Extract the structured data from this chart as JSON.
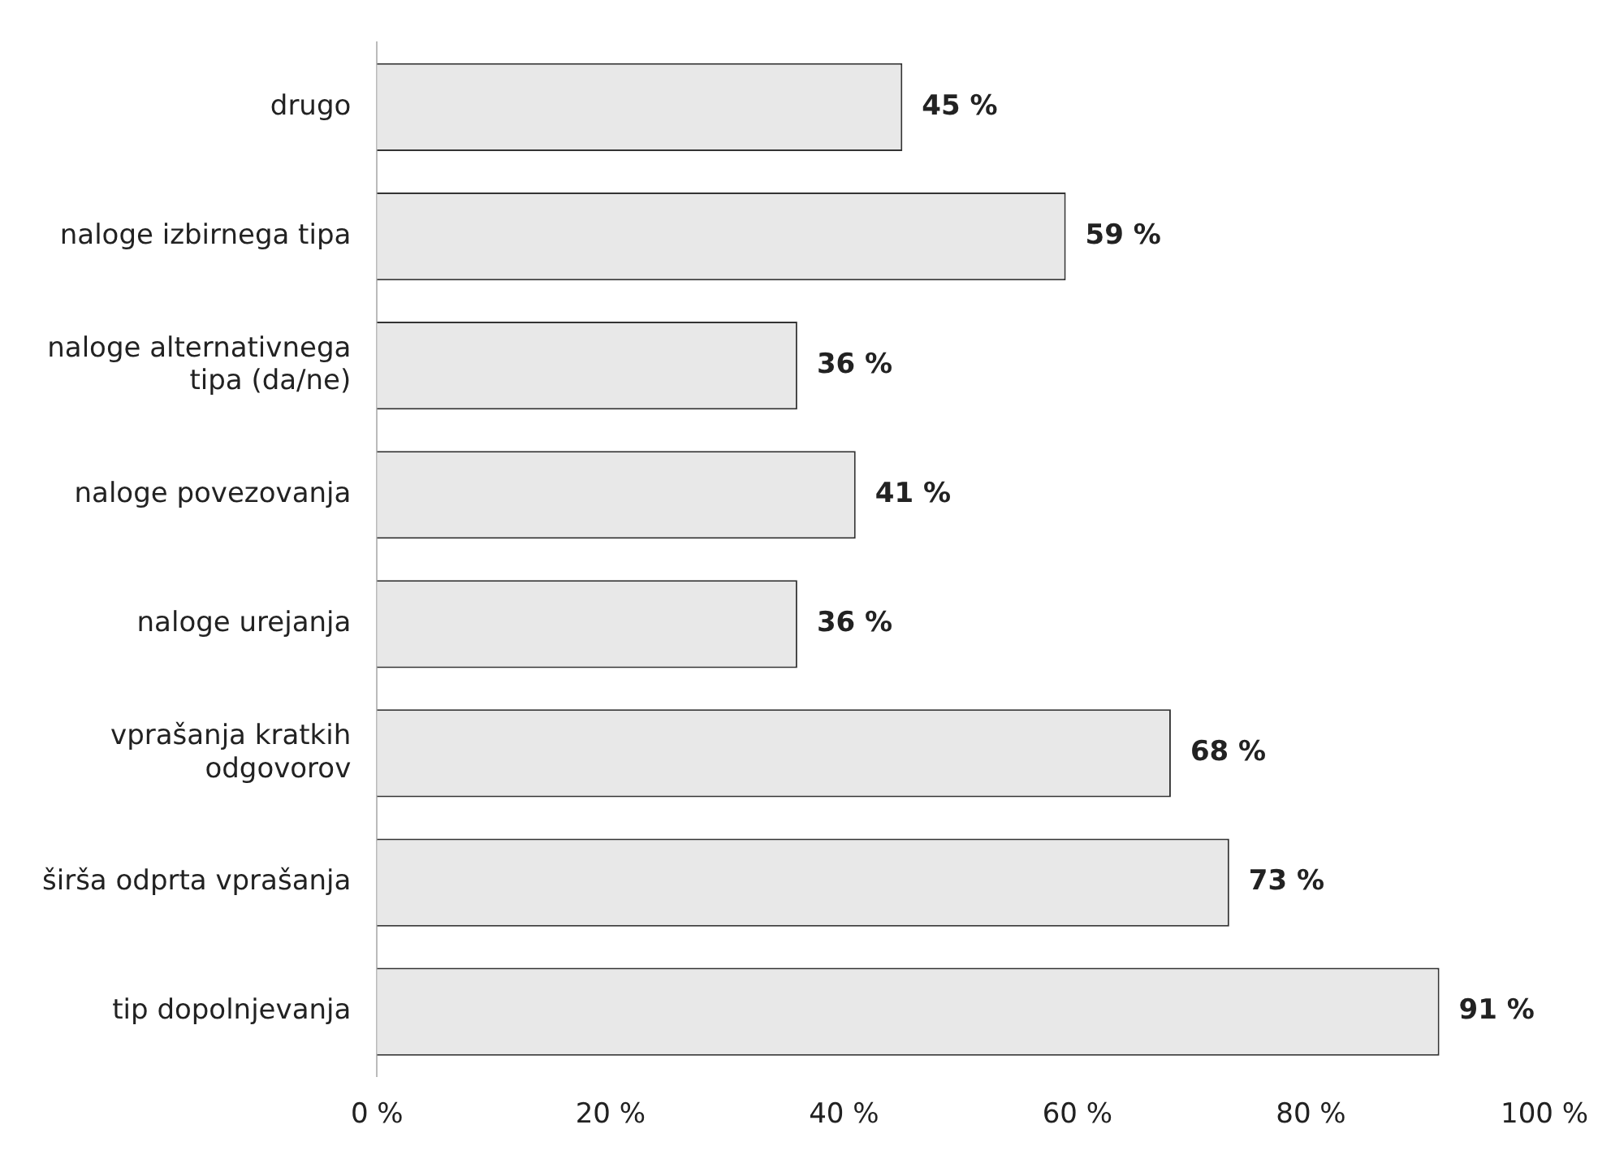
{
  "chart_data": {
    "type": "bar",
    "orientation": "horizontal",
    "categories": [
      "drugo",
      "naloge izbirnega tipa",
      "naloge alternativnega tipa (da/ne)",
      "naloge povezovanja",
      "naloge urejanja",
      "vprašanja kratkih odgovorov",
      "širša odprta vprašanja",
      "tip dopolnjevanja"
    ],
    "values": [
      45,
      59,
      36,
      41,
      36,
      68,
      73,
      91
    ],
    "color": "#e8e8e8",
    "value_labels": [
      "45 %",
      "59 %",
      "36 %",
      "41 %",
      "36 %",
      "68 %",
      "73 %",
      "91 %"
    ],
    "xlim": [
      0,
      100
    ],
    "xticks": [
      {
        "value": 0,
        "label": "0 %"
      },
      {
        "value": 20,
        "label": "20 %"
      },
      {
        "value": 40,
        "label": "40 %"
      },
      {
        "value": 60,
        "label": "60 %"
      },
      {
        "value": 80,
        "label": "80 %"
      },
      {
        "value": 100,
        "label": "100 %"
      }
    ],
    "grid": false,
    "legend": false
  }
}
